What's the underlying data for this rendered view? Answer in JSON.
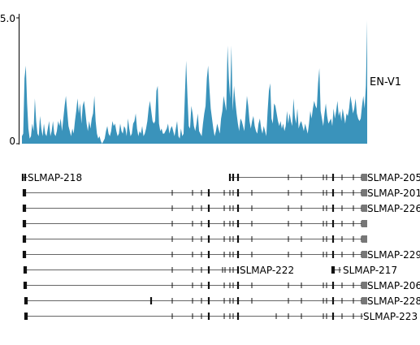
{
  "coverage": {
    "label": "EN-V1",
    "ymax_label": "5.0",
    "ymin_label": "0",
    "color": "#3a93bb",
    "values": [
      0.3,
      0.4,
      2.6,
      3.1,
      1.6,
      0.6,
      0.2,
      0.3,
      0.8,
      0.5,
      1.8,
      0.9,
      0.4,
      0.3,
      1.1,
      0.6,
      0.3,
      0.8,
      0.4,
      0.3,
      0.6,
      0.9,
      0.3,
      0.5,
      0.9,
      0.4,
      0.3,
      0.5,
      0.9,
      0.7,
      1.0,
      0.5,
      1.0,
      1.5,
      1.9,
      1.3,
      0.7,
      0.5,
      0.3,
      0.6,
      0.4,
      0.9,
      1.3,
      1.8,
      1.2,
      1.6,
      0.8,
      1.5,
      1.7,
      1.3,
      0.8,
      0.5,
      0.9,
      0.6,
      1.0,
      1.2,
      1.9,
      0.9,
      0.4,
      0.2,
      0.3,
      0.1,
      0.0,
      0.1,
      0.2,
      0.5,
      0.7,
      0.4,
      0.3,
      0.5,
      0.9,
      0.7,
      0.8,
      0.5,
      0.3,
      0.4,
      0.8,
      0.5,
      0.4,
      0.7,
      0.6,
      0.3,
      1.0,
      0.6,
      0.3,
      0.4,
      0.8,
      0.9,
      1.2,
      0.6,
      0.3,
      0.5,
      0.4,
      0.7,
      0.3,
      0.4,
      0.6,
      0.9,
      1.4,
      1.7,
      1.3,
      0.9,
      0.8,
      0.9,
      2.1,
      2.3,
      0.8,
      0.5,
      0.6,
      0.4,
      0.4,
      0.5,
      0.6,
      0.8,
      0.4,
      0.6,
      0.7,
      0.5,
      0.3,
      0.6,
      0.9,
      0.3,
      0.2,
      0.6,
      0.3,
      0.4,
      1.9,
      3.3,
      1.9,
      0.7,
      0.6,
      1.5,
      1.2,
      0.7,
      0.5,
      0.8,
      1.2,
      0.5,
      0.4,
      0.3,
      0.8,
      1.2,
      1.5,
      2.6,
      3.1,
      2.2,
      1.4,
      1.0,
      0.6,
      0.3,
      0.5,
      0.8,
      0.6,
      0.4,
      1.0,
      1.3,
      1.9,
      1.6,
      1.3,
      3.9,
      2.6,
      1.8,
      3.9,
      1.3,
      2.3,
      1.7,
      1.2,
      0.8,
      0.5,
      1.0,
      0.9,
      0.7,
      0.5,
      1.2,
      1.9,
      1.5,
      0.9,
      0.6,
      0.9,
      1.1,
      0.7,
      0.5,
      0.4,
      0.8,
      1.0,
      0.6,
      0.4,
      0.7,
      0.5,
      0.3,
      1.3,
      2.1,
      2.4,
      1.0,
      0.8,
      1.6,
      1.5,
      1.2,
      0.9,
      0.7,
      0.9,
      0.6,
      0.8,
      0.5,
      0.7,
      1.3,
      0.8,
      1.2,
      0.9,
      0.7,
      1.8,
      1.1,
      0.8,
      1.4,
      0.6,
      0.8,
      0.9,
      0.7,
      0.5,
      0.8,
      0.6,
      0.4,
      0.8,
      1.3,
      1.0,
      1.4,
      1.7,
      1.5,
      1.4,
      2.4,
      3.0,
      1.3,
      1.0,
      0.7,
      1.2,
      1.6,
      1.1,
      0.8,
      0.9,
      1.0,
      0.7,
      1.4,
      1.0,
      1.3,
      1.7,
      1.1,
      1.3,
      0.9,
      1.4,
      1.1,
      0.8,
      1.2,
      1.1,
      1.4,
      1.9,
      1.6,
      1.2,
      1.4,
      1.8,
      1.2,
      1.0,
      0.9,
      1.0,
      1.5,
      1.9,
      1.4,
      2.3,
      4.9
    ]
  },
  "transcripts": [
    {
      "label": "SLMAP-218",
      "label_side": "left",
      "color": "#000000"
    },
    {
      "label": "SLMAP-205",
      "label_side": "right",
      "color": "#000000"
    },
    {
      "label": "SLMAP-201",
      "label_side": "right",
      "color": "#000000"
    },
    {
      "label": "SLMAP-226",
      "label_side": "right",
      "color": "#000000"
    },
    {
      "label": "",
      "label_side": "none",
      "color": "#000000"
    },
    {
      "label": "",
      "label_side": "none",
      "color": "#000000"
    },
    {
      "label": "SLMAP-229",
      "label_side": "right",
      "color": "#000000"
    },
    {
      "label": "SLMAP-222",
      "label_side": "right",
      "color": "#000000"
    },
    {
      "label": "SLMAP-217",
      "label_side": "right",
      "color": "#000000"
    },
    {
      "label": "SLMAP-206",
      "label_side": "right",
      "color": "#000000"
    },
    {
      "label": "SLMAP-228",
      "label_side": "right",
      "color": "#000000"
    },
    {
      "label": "SLMAP-223",
      "label_side": "right",
      "color": "#000000"
    }
  ],
  "colors": {
    "exon": "#111111",
    "utr": "#777777",
    "intron": "#333333"
  }
}
